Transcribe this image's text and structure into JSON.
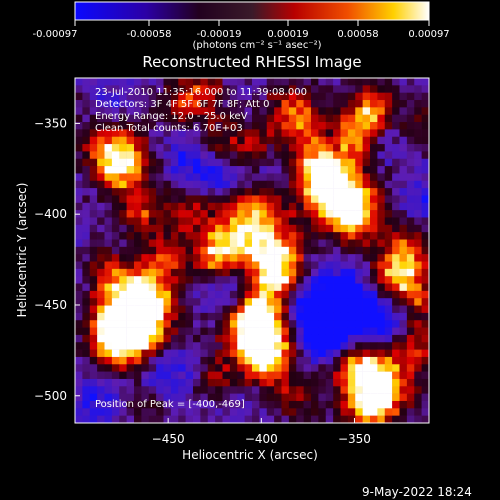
{
  "chart_data": {
    "type": "heatmap",
    "title": "Reconstructed RHESSI Image",
    "colorbar": {
      "label_html": "(photons cm⁻² s⁻¹ asec⁻²)",
      "ticks": [
        "-0.00097",
        "-0.00058",
        "-0.00019",
        "0.00019",
        "0.00058",
        "0.00097"
      ],
      "range": [
        -0.00097,
        0.00097
      ]
    },
    "x_axis": {
      "label": "Heliocentric X (arcsec)",
      "range": [
        -500,
        -310
      ],
      "ticks": [
        {
          "value": -450,
          "label": "−450"
        },
        {
          "value": -400,
          "label": "−400"
        },
        {
          "value": -350,
          "label": "−350"
        }
      ]
    },
    "y_axis": {
      "label": "Heliocentric Y (arcsec)",
      "range": [
        -515,
        -325
      ],
      "ticks": [
        {
          "value": -350,
          "label": "−350"
        },
        {
          "value": -400,
          "label": "−400"
        },
        {
          "value": -450,
          "label": "−450"
        },
        {
          "value": -500,
          "label": "−500"
        }
      ]
    },
    "info_lines": [
      "23-Jul-2010 11:35:16.000 to 11:39:08.000",
      "Detectors: 3F 4F 5F 6F 7F 8F; Att 0",
      "Energy Range: 12.0 - 25.0 keV",
      "Clean     Total counts: 6.70E+03"
    ],
    "peak_label": "Position of Peak = [-400,-469]",
    "peak": {
      "x": -400,
      "y": -469
    },
    "footer": "9-May-2022 18:24",
    "hotspots": [
      {
        "x": -470,
        "y": -458,
        "s": 14,
        "a": 1.0
      },
      {
        "x": -466,
        "y": -448,
        "s": 12,
        "a": 0.95
      },
      {
        "x": -475,
        "y": -470,
        "s": 11,
        "a": 0.85
      },
      {
        "x": -400,
        "y": -469,
        "s": 13,
        "a": 1.0
      },
      {
        "x": -404,
        "y": -457,
        "s": 10,
        "a": 0.85
      },
      {
        "x": -398,
        "y": -480,
        "s": 9,
        "a": 0.7
      },
      {
        "x": -393,
        "y": -420,
        "s": 10,
        "a": 0.9
      },
      {
        "x": -392,
        "y": -436,
        "s": 10,
        "a": 0.75
      },
      {
        "x": -415,
        "y": -410,
        "s": 12,
        "a": 0.8
      },
      {
        "x": -425,
        "y": -425,
        "s": 10,
        "a": 0.7
      },
      {
        "x": -360,
        "y": -387,
        "s": 14,
        "a": 0.95
      },
      {
        "x": -352,
        "y": -400,
        "s": 11,
        "a": 0.85
      },
      {
        "x": -370,
        "y": -375,
        "s": 10,
        "a": 0.7
      },
      {
        "x": -347,
        "y": -356,
        "s": 10,
        "a": 0.7
      },
      {
        "x": -340,
        "y": -340,
        "s": 9,
        "a": 0.65
      },
      {
        "x": -335,
        "y": -492,
        "s": 13,
        "a": 0.9
      },
      {
        "x": -342,
        "y": -505,
        "s": 10,
        "a": 0.8
      },
      {
        "x": -350,
        "y": -482,
        "s": 9,
        "a": 0.65
      },
      {
        "x": -315,
        "y": -470,
        "s": 10,
        "a": 0.6
      },
      {
        "x": -480,
        "y": -362,
        "s": 12,
        "a": 0.75
      },
      {
        "x": -474,
        "y": -376,
        "s": 10,
        "a": 0.7
      },
      {
        "x": -465,
        "y": -400,
        "s": 9,
        "a": 0.55
      },
      {
        "x": -440,
        "y": -398,
        "s": 9,
        "a": 0.55
      },
      {
        "x": -452,
        "y": -425,
        "s": 9,
        "a": 0.55
      },
      {
        "x": -445,
        "y": -340,
        "s": 8,
        "a": 0.5
      },
      {
        "x": -432,
        "y": -333,
        "s": 9,
        "a": 0.55
      },
      {
        "x": -385,
        "y": -340,
        "s": 10,
        "a": 0.55
      },
      {
        "x": -378,
        "y": -352,
        "s": 9,
        "a": 0.55
      },
      {
        "x": -405,
        "y": -362,
        "s": 9,
        "a": 0.5
      },
      {
        "x": -322,
        "y": -420,
        "s": 11,
        "a": 0.6
      },
      {
        "x": -330,
        "y": -435,
        "s": 10,
        "a": 0.6
      },
      {
        "x": -318,
        "y": -445,
        "s": 9,
        "a": 0.55
      },
      {
        "x": -383,
        "y": -501,
        "s": 9,
        "a": 0.5
      },
      {
        "x": -460,
        "y": -505,
        "s": 8,
        "a": 0.45
      },
      {
        "x": -425,
        "y": -490,
        "s": 8,
        "a": 0.45
      },
      {
        "x": -485,
        "y": -430,
        "s": 8,
        "a": 0.5
      },
      {
        "x": -425,
        "y": -360,
        "s": 8,
        "a": 0.45
      },
      {
        "x": -310,
        "y": -350,
        "s": 8,
        "a": 0.45
      },
      {
        "x": -400,
        "y": -395,
        "s": 10,
        "a": 0.65
      }
    ],
    "coldspots": [
      {
        "x": -355,
        "y": -450,
        "s": 14,
        "a": 1.0
      },
      {
        "x": -372,
        "y": -455,
        "s": 11,
        "a": 0.8
      },
      {
        "x": -366,
        "y": -470,
        "s": 9,
        "a": 0.7
      },
      {
        "x": -332,
        "y": -458,
        "s": 9,
        "a": 0.55
      },
      {
        "x": -420,
        "y": -443,
        "s": 10,
        "a": 0.55
      },
      {
        "x": -450,
        "y": -488,
        "s": 11,
        "a": 0.55
      },
      {
        "x": -490,
        "y": -505,
        "s": 10,
        "a": 0.5
      },
      {
        "x": -425,
        "y": -378,
        "s": 9,
        "a": 0.55
      },
      {
        "x": -440,
        "y": -370,
        "s": 9,
        "a": 0.45
      },
      {
        "x": -335,
        "y": -362,
        "s": 8,
        "a": 0.45
      },
      {
        "x": -315,
        "y": -395,
        "s": 9,
        "a": 0.45
      },
      {
        "x": -480,
        "y": -340,
        "s": 8,
        "a": 0.45
      },
      {
        "x": -395,
        "y": -380,
        "s": 9,
        "a": 0.45
      }
    ]
  }
}
